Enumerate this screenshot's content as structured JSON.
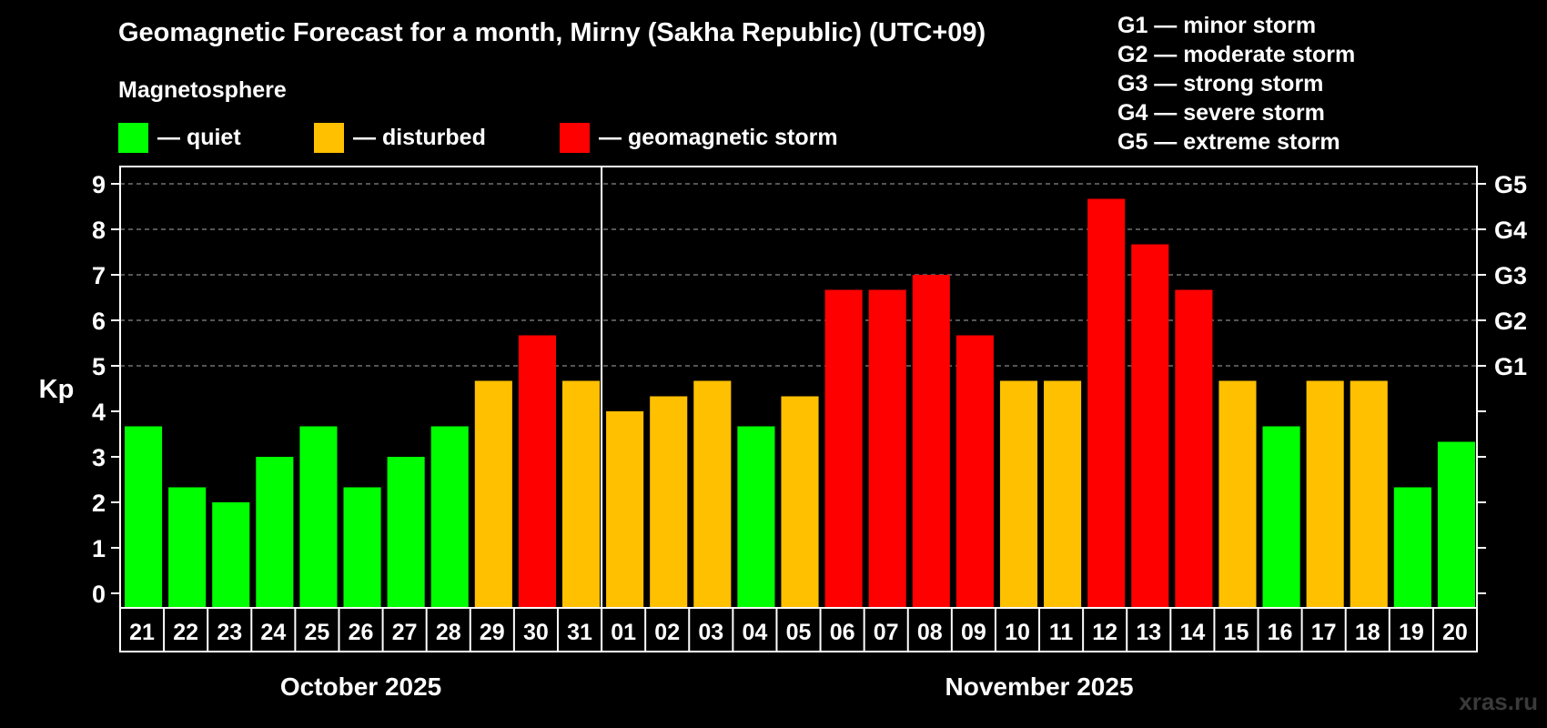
{
  "title": "Geomagnetic Forecast for a month, Mirny (Sakha Republic) (UTC+09)",
  "legend": {
    "heading": "Magnetosphere",
    "items": [
      {
        "label": "— quiet",
        "color": "#00ff00"
      },
      {
        "label": "— disturbed",
        "color": "#ffc000"
      },
      {
        "label": "— geomagnetic storm",
        "color": "#ff0000"
      }
    ]
  },
  "g_scale": [
    "G1 — minor storm",
    "G2 — moderate storm",
    "G3 — strong storm",
    "G4 — severe storm",
    "G5 — extreme storm"
  ],
  "watermark": "xras.ru",
  "colors": {
    "quiet": "#00ff00",
    "disturbed": "#ffc000",
    "storm": "#ff0000",
    "axis": "#ffffff",
    "grid": "#888888"
  },
  "chart_data": {
    "type": "bar",
    "ylabel": "Kp",
    "ylim": [
      0,
      9
    ],
    "yticks": [
      "0",
      "1",
      "2",
      "3",
      "4",
      "5",
      "6",
      "7",
      "8",
      "9"
    ],
    "right_axis_labels": [
      {
        "kp": 5,
        "label": "G1"
      },
      {
        "kp": 6,
        "label": "G2"
      },
      {
        "kp": 7,
        "label": "G3"
      },
      {
        "kp": 8,
        "label": "G4"
      },
      {
        "kp": 9,
        "label": "G5"
      }
    ],
    "grid_lines_kp": [
      5,
      6,
      7,
      8,
      9
    ],
    "month_divider_after_index": 10,
    "months": [
      {
        "label": "October 2025",
        "start_index": 0,
        "end_index": 10
      },
      {
        "label": "November 2025",
        "start_index": 11,
        "end_index": 30
      }
    ],
    "categories": [
      "21",
      "22",
      "23",
      "24",
      "25",
      "26",
      "27",
      "28",
      "29",
      "30",
      "31",
      "01",
      "02",
      "03",
      "04",
      "05",
      "06",
      "07",
      "08",
      "09",
      "10",
      "11",
      "12",
      "13",
      "14",
      "15",
      "16",
      "17",
      "18",
      "19",
      "20"
    ],
    "values": [
      3.67,
      2.33,
      2.0,
      3.0,
      3.67,
      2.33,
      3.0,
      3.67,
      4.67,
      5.67,
      4.67,
      4.0,
      4.33,
      4.67,
      3.67,
      4.33,
      6.67,
      6.67,
      7.0,
      5.67,
      4.67,
      4.67,
      8.67,
      7.67,
      6.67,
      4.67,
      3.67,
      4.67,
      4.67,
      2.33,
      3.33
    ],
    "levels": [
      "quiet",
      "quiet",
      "quiet",
      "quiet",
      "quiet",
      "quiet",
      "quiet",
      "quiet",
      "disturbed",
      "storm",
      "disturbed",
      "disturbed",
      "disturbed",
      "disturbed",
      "quiet",
      "disturbed",
      "storm",
      "storm",
      "storm",
      "storm",
      "disturbed",
      "disturbed",
      "storm",
      "storm",
      "storm",
      "disturbed",
      "quiet",
      "disturbed",
      "disturbed",
      "quiet",
      "quiet"
    ]
  }
}
